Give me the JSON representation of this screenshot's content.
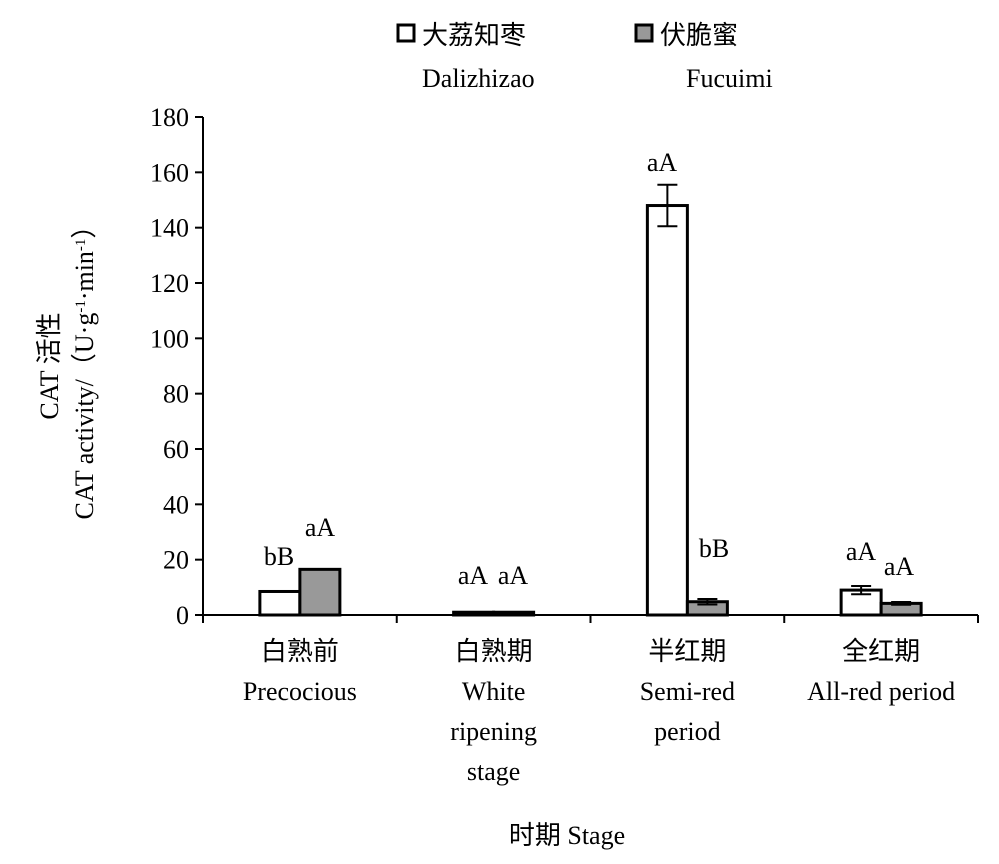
{
  "chart_data": {
    "type": "bar",
    "xlabel": "时期 Stage",
    "ylabel": [
      "CAT 活性",
      "CAT activity/（U·g",
      "-1",
      "·min",
      "-1",
      "）"
    ],
    "ylim": [
      0,
      180
    ],
    "yticks": [
      0,
      20,
      40,
      60,
      80,
      100,
      120,
      140,
      160,
      180
    ],
    "categories": [
      [
        "白熟前",
        "Precocious"
      ],
      [
        "白熟期",
        "White",
        "ripening",
        "stage"
      ],
      [
        "半红期",
        "Semi-red",
        "period"
      ],
      [
        "全红期",
        "All-red period"
      ]
    ],
    "series": [
      {
        "name": [
          "大荔知枣",
          "Dalizhizao"
        ],
        "color": "#ffffff",
        "values": [
          8.5,
          1.0,
          148,
          9.0
        ],
        "errors": [
          0,
          0,
          7.5,
          1.5
        ],
        "letters": [
          "bB",
          "aA",
          "aA",
          "aA"
        ]
      },
      {
        "name": [
          "伏脆蜜",
          "Fucuimi"
        ],
        "color": "#999999",
        "values": [
          16.5,
          1.0,
          4.8,
          4.2
        ],
        "errors": [
          0,
          0,
          1.0,
          0.5
        ],
        "letters": [
          "aA",
          "aA",
          "bB",
          "aA"
        ]
      }
    ],
    "grid": false,
    "legend": "top"
  }
}
